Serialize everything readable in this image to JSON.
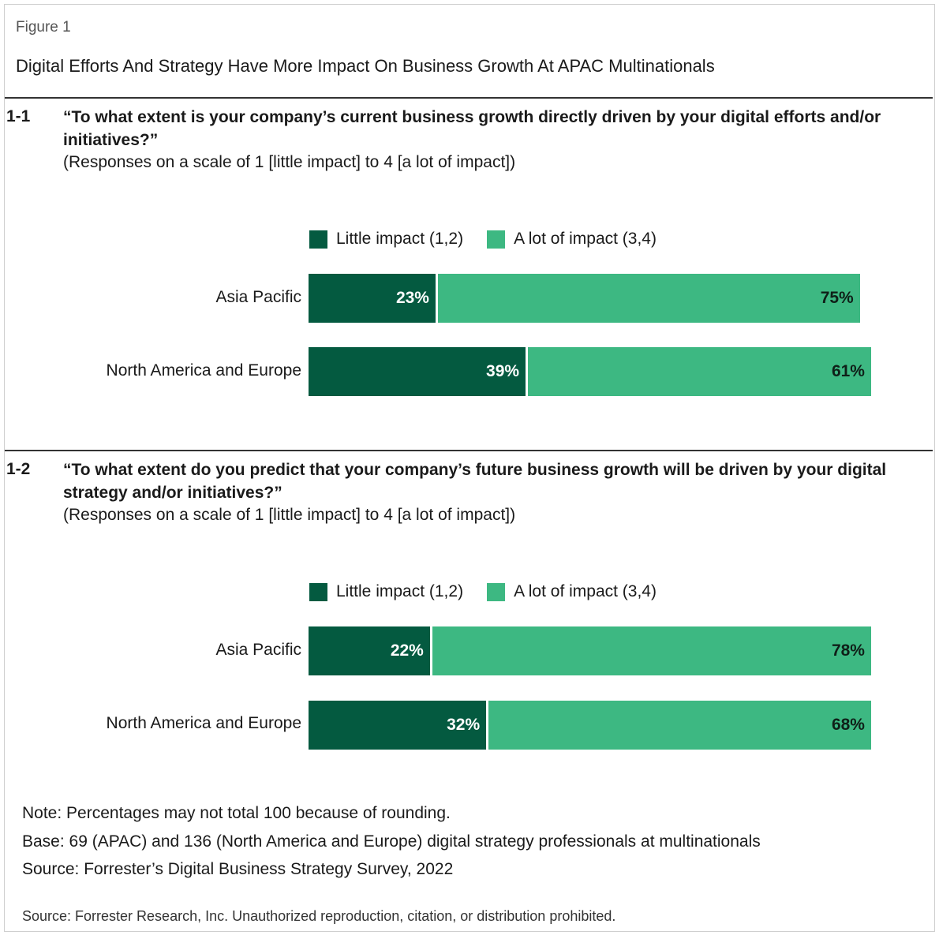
{
  "figure_label": "Figure 1",
  "figure_title": "Digital Efforts And Strategy Have More Impact On Business Growth At APAC Multinationals",
  "colors": {
    "little": "#045a40",
    "alot": "#3db882"
  },
  "chart_data": [
    {
      "type": "bar",
      "stacked": true,
      "orientation": "horizontal",
      "number": "1-1",
      "question": "“To what extent is your company’s current business growth directly driven by your digital efforts and/or initiatives?”",
      "subtitle": "(Responses on a scale of 1 [little impact] to 4 [a lot of impact])",
      "legend": [
        "Little impact (1,2)",
        "A lot of impact (3,4)"
      ],
      "categories": [
        "Asia Pacific",
        "North America and Europe"
      ],
      "series": [
        {
          "name": "Little impact (1,2)",
          "values": [
            23,
            39
          ],
          "labels": [
            "23%",
            "39%"
          ]
        },
        {
          "name": "A lot of impact (3,4)",
          "values": [
            75,
            61
          ],
          "labels": [
            "75%",
            "61%"
          ]
        }
      ]
    },
    {
      "type": "bar",
      "stacked": true,
      "orientation": "horizontal",
      "number": "1-2",
      "question": "“To what extent do you predict that your company’s future business growth will be driven by your digital strategy and/or initiatives?”",
      "subtitle": "(Responses on a scale of 1 [little impact] to 4 [a lot of impact])",
      "legend": [
        "Little impact (1,2)",
        "A lot of impact (3,4)"
      ],
      "categories": [
        "Asia Pacific",
        "North America and Europe"
      ],
      "series": [
        {
          "name": "Little impact (1,2)",
          "values": [
            22,
            32
          ],
          "labels": [
            "22%",
            "32%"
          ]
        },
        {
          "name": "A lot of impact (3,4)",
          "values": [
            78,
            68
          ],
          "labels": [
            "78%",
            "68%"
          ]
        }
      ]
    }
  ],
  "notes": {
    "note": "Note: Percentages may not total 100 because of rounding.",
    "base": "Base: 69 (APAC) and 136 (North America and Europe) digital strategy professionals at multinationals",
    "source": "Source: Forrester’s Digital Business Strategy Survey, 2022"
  },
  "footer": "Source: Forrester Research, Inc. Unauthorized reproduction, citation, or distribution prohibited."
}
